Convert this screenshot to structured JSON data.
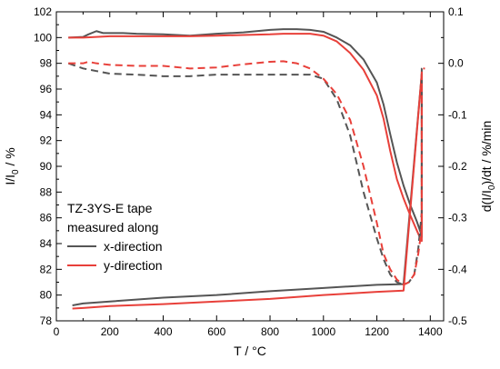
{
  "chart_data": {
    "type": "line",
    "xlabel": "T / °C",
    "ylabel_left": {
      "pre": "I/I",
      "sub": "0",
      "post": " / %"
    },
    "ylabel_right": {
      "pre": "d(I/I",
      "sub": "0",
      "post": ")/dt / %/min"
    },
    "xlim": [
      0,
      1450
    ],
    "ylim_left": [
      78,
      102
    ],
    "ylim_right": [
      -0.5,
      0.1
    ],
    "x_ticks": [
      0,
      200,
      400,
      600,
      800,
      1000,
      1200,
      1400
    ],
    "y_left_ticks": [
      78,
      80,
      82,
      84,
      86,
      88,
      90,
      92,
      94,
      96,
      98,
      100,
      102
    ],
    "y_right_ticks": [
      -0.5,
      -0.4,
      -0.3,
      -0.2,
      -0.1,
      0.0,
      0.1
    ],
    "y_right_tick_labels": [
      "-0.5",
      "-0.4",
      "-0.3",
      "-0.2",
      "-0.1",
      "0.0",
      "0.1"
    ],
    "legend": {
      "title_lines": [
        "TZ-3YS-E tape",
        "measured along"
      ],
      "entries": [
        "x-direction",
        "y-direction"
      ],
      "placement": "lower-left"
    },
    "series": [
      {
        "name": "x-direction",
        "color": "#555555",
        "axis": "left",
        "style": "solid",
        "x": [
          45,
          100,
          120,
          150,
          175,
          200,
          250,
          300,
          400,
          500,
          600,
          700,
          800,
          850,
          900,
          950,
          1000,
          1050,
          1100,
          1150,
          1200,
          1225,
          1250,
          1275,
          1300,
          1325,
          1350,
          1365,
          1368,
          1368,
          1368,
          1300,
          1200,
          1000,
          800,
          600,
          400,
          200,
          100,
          60
        ],
        "y": [
          100.0,
          100.05,
          100.25,
          100.5,
          100.35,
          100.35,
          100.35,
          100.3,
          100.25,
          100.15,
          100.3,
          100.4,
          100.6,
          100.65,
          100.65,
          100.6,
          100.45,
          100.0,
          99.4,
          98.3,
          96.5,
          94.8,
          92.5,
          90.3,
          88.5,
          87.0,
          85.7,
          84.8,
          84.5,
          92.0,
          97.2,
          80.85,
          80.8,
          80.55,
          80.3,
          80.0,
          79.8,
          79.5,
          79.35,
          79.2
        ]
      },
      {
        "name": "y-direction",
        "color": "#e8403a",
        "axis": "left",
        "style": "solid",
        "x": [
          45,
          100,
          150,
          200,
          300,
          400,
          500,
          600,
          700,
          800,
          850,
          900,
          950,
          1000,
          1050,
          1100,
          1150,
          1200,
          1225,
          1250,
          1275,
          1300,
          1325,
          1350,
          1365,
          1368,
          1368,
          1368,
          1300,
          1200,
          1000,
          800,
          600,
          400,
          200,
          100,
          60
        ],
        "y": [
          100.0,
          100.0,
          100.05,
          100.1,
          100.1,
          100.1,
          100.1,
          100.15,
          100.2,
          100.25,
          100.3,
          100.3,
          100.3,
          100.15,
          99.7,
          98.8,
          97.5,
          95.5,
          93.7,
          91.2,
          89.0,
          87.5,
          86.2,
          85.0,
          84.3,
          84.2,
          92.0,
          97.2,
          80.35,
          80.25,
          80.0,
          79.7,
          79.5,
          79.3,
          79.15,
          79.0,
          78.95
        ]
      },
      {
        "name": "x-direction",
        "color": "#555555",
        "axis": "right",
        "style": "dashed",
        "x": [
          45,
          100,
          150,
          200,
          300,
          400,
          500,
          600,
          700,
          800,
          900,
          950,
          1000,
          1050,
          1100,
          1150,
          1200,
          1225,
          1250,
          1275,
          1300,
          1320,
          1340,
          1355,
          1368,
          1368,
          1380
        ],
        "y": [
          0.0,
          -0.01,
          -0.015,
          -0.02,
          -0.022,
          -0.025,
          -0.025,
          -0.022,
          -0.022,
          -0.022,
          -0.022,
          -0.022,
          -0.03,
          -0.07,
          -0.14,
          -0.25,
          -0.34,
          -0.38,
          -0.41,
          -0.425,
          -0.43,
          -0.425,
          -0.41,
          -0.36,
          -0.29,
          -0.01,
          -0.005
        ]
      },
      {
        "name": "y-direction",
        "color": "#e8403a",
        "axis": "right",
        "style": "dashed",
        "x": [
          45,
          100,
          120,
          150,
          200,
          300,
          400,
          500,
          600,
          700,
          800,
          850,
          900,
          950,
          1000,
          1050,
          1100,
          1150,
          1200,
          1225,
          1250,
          1275,
          1300,
          1320,
          1340,
          1355,
          1368,
          1368,
          1380
        ],
        "y": [
          0.0,
          0.0,
          0.003,
          0.0,
          -0.003,
          -0.005,
          -0.005,
          -0.01,
          -0.008,
          -0.002,
          0.003,
          0.004,
          0.0,
          -0.01,
          -0.03,
          -0.06,
          -0.11,
          -0.2,
          -0.31,
          -0.37,
          -0.4,
          -0.42,
          -0.43,
          -0.425,
          -0.41,
          -0.37,
          -0.32,
          -0.01,
          -0.01
        ]
      }
    ]
  }
}
